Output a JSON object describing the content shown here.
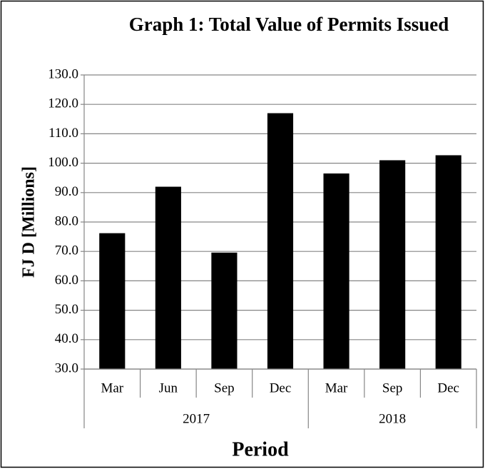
{
  "chart_data": {
    "type": "bar",
    "title": "Graph 1: Total Value of Permits Issued",
    "x_label": "Period",
    "y_label": "FJ D [Millions]",
    "groups": [
      {
        "label": "2017",
        "categories": [
          "Mar",
          "Jun",
          "Sep",
          "Dec"
        ]
      },
      {
        "label": "2018",
        "categories": [
          "Mar",
          "Sep",
          "Dec"
        ]
      }
    ],
    "values": [
      76.2,
      92.0,
      69.6,
      117.0,
      96.5,
      101.0,
      102.7
    ],
    "color": "#000000",
    "ylim": [
      30,
      130
    ],
    "yticks": [
      {
        "value": 30,
        "label": "30.0"
      },
      {
        "value": 40,
        "label": "40.0"
      },
      {
        "value": 50,
        "label": "50.0"
      },
      {
        "value": 60,
        "label": "60.0"
      },
      {
        "value": 70,
        "label": "70.0"
      },
      {
        "value": 80,
        "label": "80.0"
      },
      {
        "value": 90,
        "label": "90.0"
      },
      {
        "value": 100,
        "label": "100.0"
      },
      {
        "value": 110,
        "label": "110.0"
      },
      {
        "value": 120,
        "label": "120.0"
      },
      {
        "value": 130,
        "label": "130.0"
      }
    ],
    "grid": true
  }
}
